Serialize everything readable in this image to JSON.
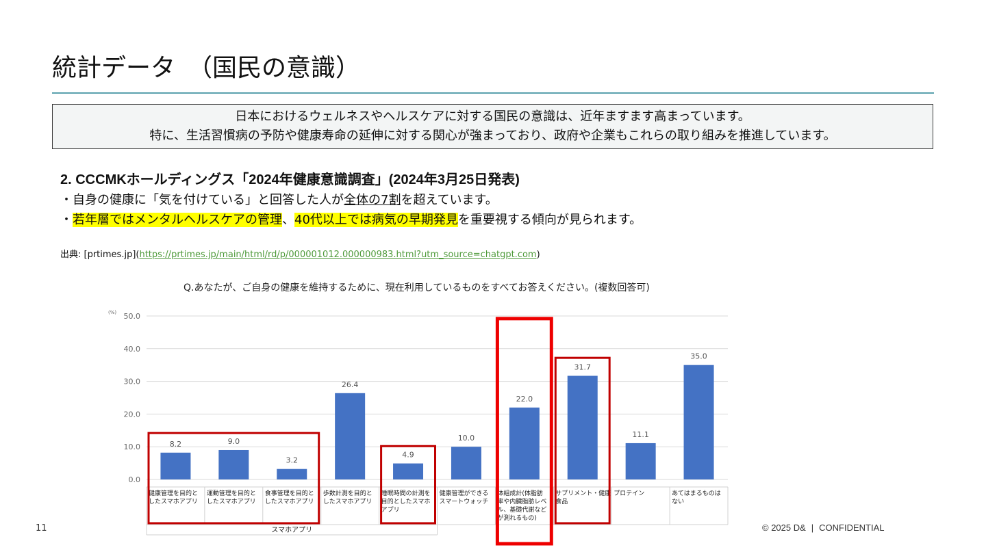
{
  "title": "統計データ　（国民の意識）",
  "summary": {
    "line1": "日本におけるウェルネスやヘルスケアに対する国民の意識は、近年ますます高まっています。",
    "line2": "特に、生活習慣病の予防や健康寿命の延伸に対する関心が強まっており、政府や企業もこれらの取り組みを推進しています。"
  },
  "survey": {
    "heading": "2. CCCMKホールディングス「2024年健康意識調査」(2024年3月25日発表)",
    "bullet1": {
      "prefix": "・自身の健康に「気を付けている」と回答した人が",
      "underlined": "全体の7割",
      "suffix": "を超えています。"
    },
    "bullet2": {
      "prefix": "・",
      "highlight1": "若年層ではメンタルヘルスケアの管理",
      "middle": "、",
      "highlight2": "40代以上では病気の早期発見",
      "suffix": "を重要視する傾向が見られます。"
    },
    "source_prefix": "出典: [prtimes.jp](",
    "source_link": "https://prtimes.jp/main/html/rd/p/000001012.000000983.html?utm_source=chatgpt.com",
    "source_suffix": ")"
  },
  "chart_question": "Q.あなたが、ご自身の健康を維持するために、現在利用しているものをすべてお答えください。(複数回答可)",
  "chart_data": {
    "type": "bar",
    "unit_label": "(%)",
    "ylim": [
      0,
      50
    ],
    "yticks": [
      "0.0",
      "10.0",
      "20.0",
      "30.0",
      "40.0",
      "50.0"
    ],
    "grid": true,
    "bar_color": "#4472c4",
    "highlight_color": "#e0141e",
    "categories": [
      [
        "健康管理を目的と",
        "したスマホアプリ"
      ],
      [
        "運動管理を目的と",
        "したスマホアプリ"
      ],
      [
        "食事管理を目的と",
        "したスマホアプリ"
      ],
      [
        "歩数計測を目的と",
        "したスマホアプリ"
      ],
      [
        "睡眠時間の計測を",
        "目的としたスマホ",
        "アプリ"
      ],
      [
        "健康管理ができる",
        "スマートウォッチ"
      ],
      [
        "体組成計(体脂肪",
        "率や内臓脂肪レベ",
        "ル、基礎代謝など",
        "が測れるもの)"
      ],
      [
        "サプリメント・健康",
        "食品"
      ],
      [
        "プロテイン"
      ],
      [
        "あてはまるものは",
        "ない"
      ]
    ],
    "values": [
      8.2,
      9.0,
      3.2,
      26.4,
      4.9,
      10.0,
      22.0,
      31.7,
      11.1,
      35.0
    ],
    "value_labels": [
      "8.2",
      "9.0",
      "3.2",
      "26.4",
      "4.9",
      "10.0",
      "22.0",
      "31.7",
      "11.1",
      "35.0"
    ],
    "group_label": "スマホアプリ",
    "highlighted_groups": [
      [
        0,
        2
      ],
      [
        4,
        4
      ],
      [
        6,
        6
      ],
      [
        7,
        7
      ]
    ]
  },
  "footer": {
    "page_number": "11",
    "copyright": "© 2025 D&",
    "separator": "|",
    "confidential": "CONFIDENTIAL"
  }
}
